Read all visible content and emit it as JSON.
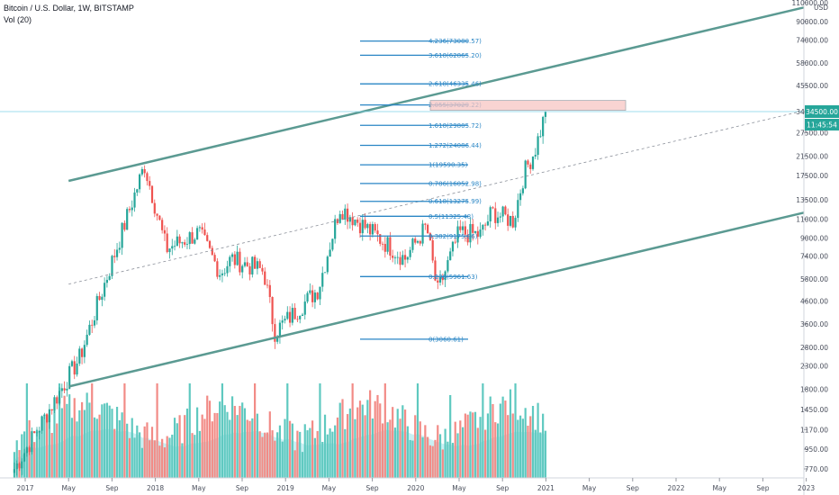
{
  "header": {
    "title": "Bitcoin / U.S. Dollar, 1W, BITSTAMP",
    "volume_label": "Vol (20)"
  },
  "colors": {
    "up": "#26a69a",
    "down": "#ef5350",
    "volume_up": "#5fc9c0",
    "volume_down": "#f28b86",
    "volume_ma": "#9fe3ea",
    "channel": "#5b9a92",
    "fib": "#2a86c5",
    "price_tag": "#26a69a"
  },
  "chart_data": {
    "type": "candlestick",
    "title": "Bitcoin / U.S. Dollar, 1W, BITSTAMP",
    "y_axis_unit": "USD",
    "y_scale": "log",
    "y_ticks": [
      "110000.00",
      "90000.00",
      "74000.00",
      "58000.00",
      "45500.00",
      "34500.00",
      "27500.00",
      "21500.00",
      "17500.00",
      "13500.00",
      "11000.00",
      "9000.00",
      "7400.00",
      "5800.00",
      "4600.00",
      "3600.00",
      "2800.00",
      "2300.00",
      "1800.00",
      "1450.00",
      "1170.00",
      "950.00",
      "770.00"
    ],
    "x_ticks": [
      "2017",
      "May",
      "Sep",
      "2018",
      "May",
      "Sep",
      "2019",
      "May",
      "Sep",
      "2020",
      "May",
      "Sep",
      "2021",
      "May",
      "Sep",
      "2022",
      "May",
      "Sep",
      "2023"
    ],
    "last_price": "34500.00",
    "countdown": "11:45:54",
    "fib_levels": [
      {
        "label": "0(3060.61)",
        "value": 3060.61
      },
      {
        "label": "0.236(5961.63)",
        "value": 5961.63
      },
      {
        "label": "0.382(9175.86)",
        "value": 9175.86
      },
      {
        "label": "0.5(11325.48)",
        "value": 11325.48
      },
      {
        "label": "0.618(13275.99)",
        "value": 13275.99
      },
      {
        "label": "0.786(16052.98)",
        "value": 16052.98
      },
      {
        "label": "1(19590.35)",
        "value": 19590.35
      },
      {
        "label": "1.272(24086.44)",
        "value": 24086.44
      },
      {
        "label": "1.618(29805.72)",
        "value": 29805.72
      },
      {
        "label": "2.055(37029.22)",
        "value": 37029.22
      },
      {
        "label": "2.618(46335.46)",
        "value": 46335.46
      },
      {
        "label": "3.618(62865.20)",
        "value": 62865.2
      },
      {
        "label": "4.236(73080.57)",
        "value": 73080.57
      }
    ],
    "channel": {
      "upper": [
        {
          "date": "2017-05",
          "price": 16500
        },
        {
          "date": "2023-03",
          "price": 111000
        }
      ],
      "lower": [
        {
          "date": "2017-05",
          "price": 1850
        },
        {
          "date": "2023-03",
          "price": 12500
        }
      ],
      "median": [
        {
          "date": "2017-05",
          "price": 5500
        },
        {
          "date": "2023-03",
          "price": 37000
        }
      ]
    },
    "anchors": [
      {
        "date": "2016-12",
        "price": 770
      },
      {
        "date": "2017-06",
        "price": 2500
      },
      {
        "date": "2017-12",
        "price": 19500
      },
      {
        "date": "2018-02",
        "price": 8000
      },
      {
        "date": "2018-05",
        "price": 9500
      },
      {
        "date": "2018-07",
        "price": 6200
      },
      {
        "date": "2018-08",
        "price": 7200
      },
      {
        "date": "2018-11",
        "price": 6300
      },
      {
        "date": "2018-12",
        "price": 3300
      },
      {
        "date": "2019-04",
        "price": 5200
      },
      {
        "date": "2019-06",
        "price": 12500
      },
      {
        "date": "2019-09",
        "price": 9500
      },
      {
        "date": "2019-12",
        "price": 7200
      },
      {
        "date": "2020-02",
        "price": 10200
      },
      {
        "date": "2020-03",
        "price": 5000
      },
      {
        "date": "2020-05",
        "price": 9500
      },
      {
        "date": "2020-07",
        "price": 9300
      },
      {
        "date": "2020-08",
        "price": 11800
      },
      {
        "date": "2020-10",
        "price": 10800
      },
      {
        "date": "2020-11",
        "price": 18000
      },
      {
        "date": "2020-12",
        "price": 23000
      },
      {
        "date": "2021-01",
        "price": 34500
      }
    ]
  }
}
